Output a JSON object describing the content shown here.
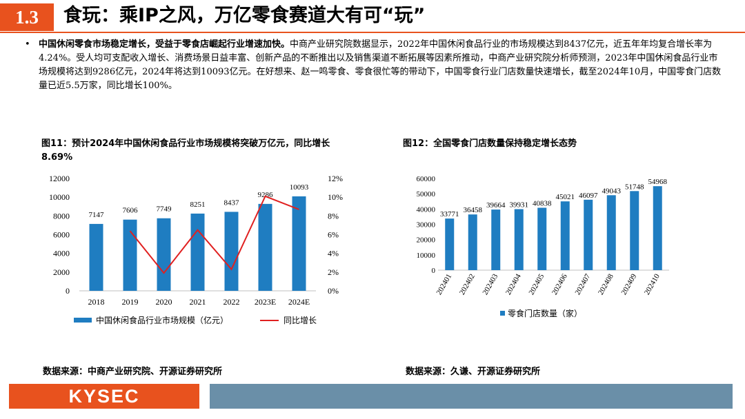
{
  "header": {
    "section_number": "1.3",
    "title": "食玩：乘IP之风，万亿零食赛道大有可“玩”"
  },
  "paragraph": {
    "bullet": "•",
    "bold_lead": "中国休闲零食市场稳定增长，受益于零食店崛起行业增速加快。",
    "body": "中商产业研究院数据显示，2022年中国休闲食品行业的市场规模达到8437亿元，近五年年均复合增长率为4.24%。受人均可支配收入增长、消费场景日益丰富、创新产品的不断推出以及销售渠道不断拓展等因素所推动，中商产业研究院分析师预测，2023年中国休闲食品行业市场规模将达到9286亿元，2024年将达到10093亿元。在好想来、赵一鸣零食、零食很忙等的带动下，中国零食行业门店数量快速增长，截至2024年10月，中国零食门店数量已近5.5万家，同比增长100%。"
  },
  "figure11": {
    "title": "图11：预计2024年中国休闲食品行业市场规模将突破万亿元，同比增长8.69%",
    "source": "数据来源：中商产业研究院、开源证券研究所"
  },
  "figure12": {
    "title": "图12：全国零食门店数量保持稳定增长态势",
    "source": "数据来源：久谦、开源证券研究所"
  },
  "footer": {
    "logo_text": "KYSEC"
  },
  "colors": {
    "accent": "#e8521e",
    "bar": "#1f7dc1",
    "line": "#e02020",
    "footer_bar": "#6a8fa8"
  },
  "chart_data": [
    {
      "type": "bar",
      "categories": [
        "2018",
        "2019",
        "2020",
        "2021",
        "2022",
        "2023E",
        "2024E"
      ],
      "series": [
        {
          "name": "中国休闲食品行业市场规模（亿元）",
          "type": "bar",
          "axis": "left",
          "values": [
            7147,
            7606,
            7749,
            8251,
            8437,
            9286,
            10093
          ]
        },
        {
          "name": "同比增长",
          "type": "line",
          "axis": "right",
          "values": [
            null,
            6.4,
            1.9,
            6.5,
            2.3,
            10.1,
            8.69
          ]
        }
      ],
      "data_labels": [
        "7147",
        "7606",
        "7749",
        "8251",
        "8437",
        "9286",
        "10093"
      ],
      "y_ticks": [
        "0",
        "2000",
        "4000",
        "6000",
        "8000",
        "10000",
        "12000"
      ],
      "y2_ticks": [
        "0%",
        "2%",
        "4%",
        "6%",
        "8%",
        "10%",
        "12%"
      ],
      "ylim": [
        0,
        12000
      ],
      "y2lim": [
        0,
        12
      ],
      "legend_position": "bottom"
    },
    {
      "type": "bar",
      "categories": [
        "202401",
        "202402",
        "202403",
        "202404",
        "202405",
        "202406",
        "202407",
        "202408",
        "202409",
        "202410"
      ],
      "series": [
        {
          "name": "零食门店数量（家）",
          "values": [
            33771,
            36458,
            39664,
            39931,
            40838,
            45021,
            46097,
            49043,
            51748,
            54968
          ]
        }
      ],
      "data_labels": [
        "33771",
        "36458",
        "39664",
        "39931",
        "40838",
        "45021",
        "46097",
        "49043",
        "51748",
        "54968"
      ],
      "y_ticks": [
        "0",
        "10000",
        "20000",
        "30000",
        "40000",
        "50000",
        "60000"
      ],
      "ylim": [
        0,
        60000
      ],
      "legend_position": "bottom"
    }
  ]
}
